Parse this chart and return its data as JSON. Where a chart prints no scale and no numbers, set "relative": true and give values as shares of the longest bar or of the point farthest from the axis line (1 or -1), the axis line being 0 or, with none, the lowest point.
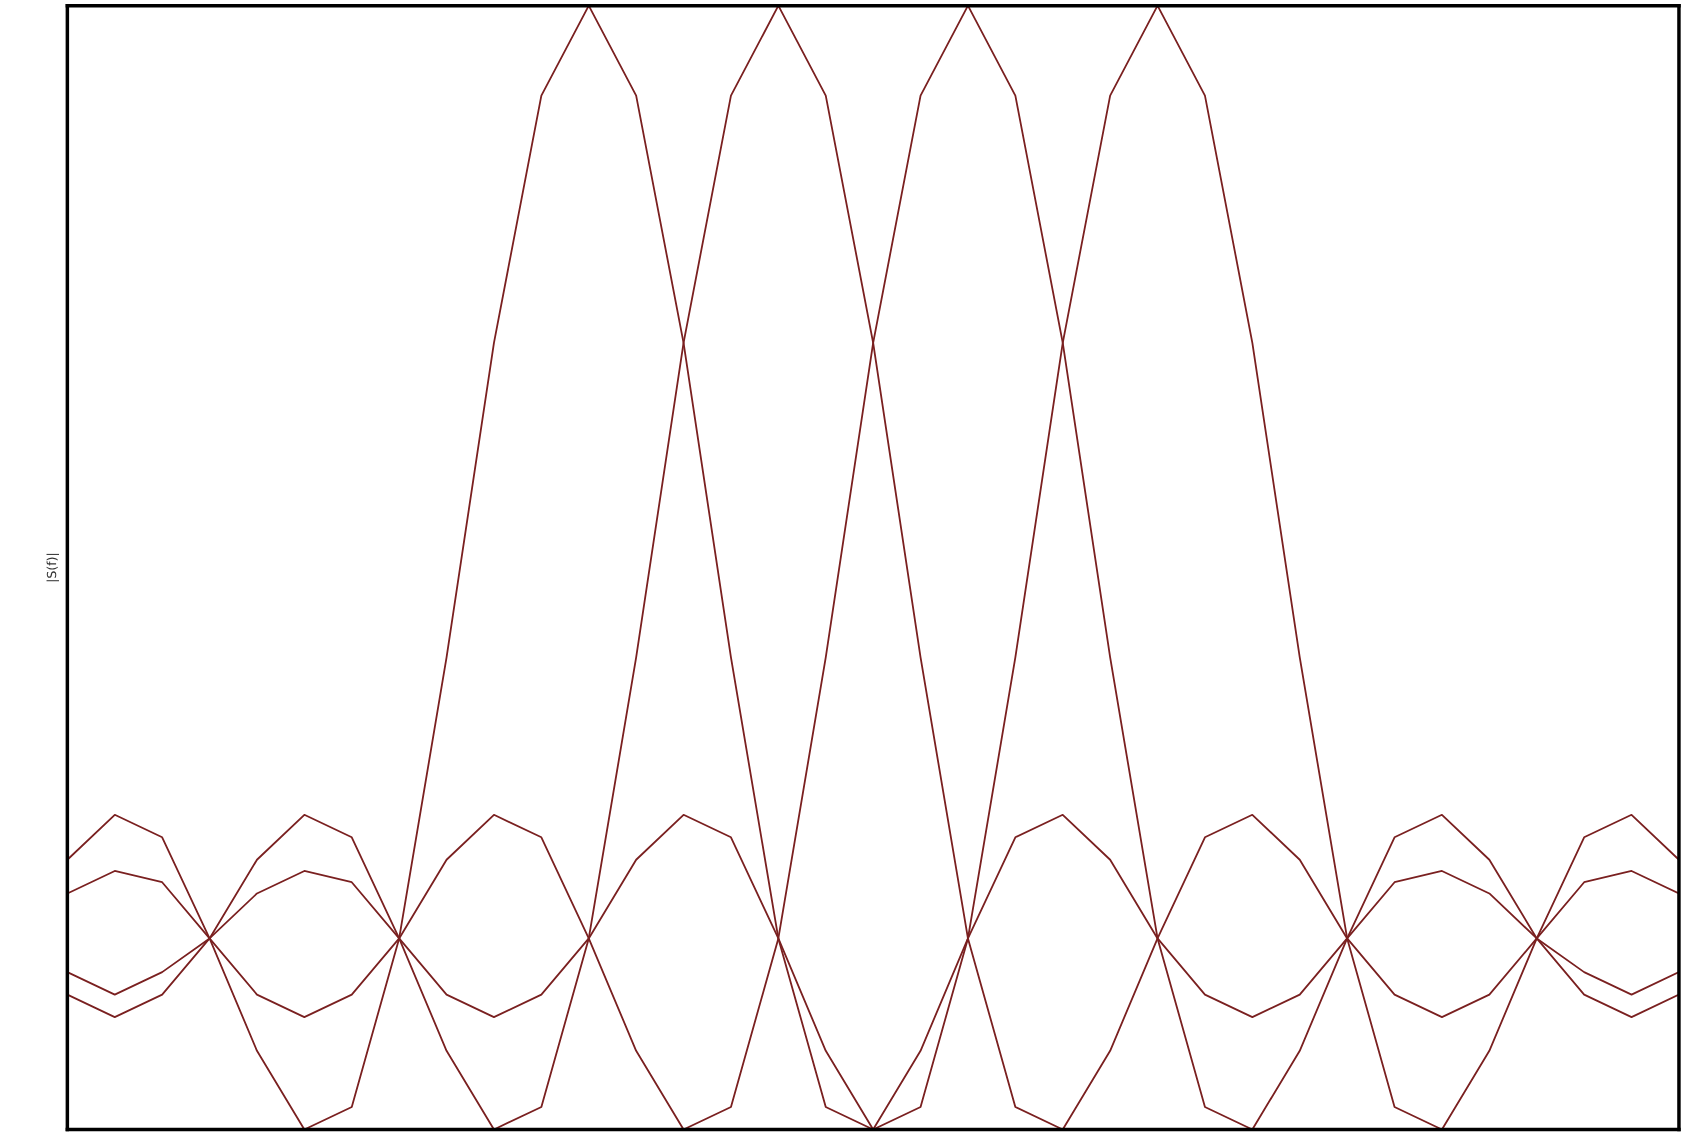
{
  "chart_data": {
    "type": "line",
    "ylabel": "|S(f)|",
    "relative": true,
    "tick_labels": false,
    "categories": [
      null,
      null,
      null,
      null,
      null,
      null,
      null,
      null,
      null,
      null,
      null,
      null,
      null,
      null,
      null,
      null,
      null,
      null,
      null,
      null,
      null,
      null,
      null,
      null,
      null,
      null,
      null,
      null,
      null,
      null,
      null,
      null,
      null,
      null,
      null
    ],
    "series": [
      {
        "color": "#7a2020",
        "values": [
          0.24,
          0.28,
          0.26,
          0.17,
          0.07,
          0.0,
          0.02,
          0.17,
          0.42,
          0.7,
          0.92,
          1.0,
          0.92,
          0.7,
          0.42,
          0.17,
          0.02,
          0.0,
          0.07,
          0.17,
          0.26,
          0.28,
          0.24,
          0.17,
          0.12,
          0.1,
          0.12,
          0.17,
          0.22,
          0.23,
          0.21,
          0.17,
          0.14,
          0.12,
          0.14
        ]
      },
      {
        "color": "#7a2020",
        "values": [
          0.12,
          0.1,
          0.12,
          0.17,
          0.24,
          0.28,
          0.26,
          0.17,
          0.07,
          0.0,
          0.02,
          0.17,
          0.42,
          0.7,
          0.92,
          1.0,
          0.92,
          0.7,
          0.42,
          0.17,
          0.02,
          0.0,
          0.07,
          0.17,
          0.26,
          0.28,
          0.24,
          0.17,
          0.12,
          0.1,
          0.12,
          0.17,
          0.22,
          0.23,
          0.21
        ]
      },
      {
        "color": "#7a2020",
        "values": [
          0.21,
          0.23,
          0.22,
          0.17,
          0.12,
          0.1,
          0.12,
          0.17,
          0.24,
          0.28,
          0.26,
          0.17,
          0.07,
          0.0,
          0.02,
          0.17,
          0.42,
          0.7,
          0.92,
          1.0,
          0.92,
          0.7,
          0.42,
          0.17,
          0.02,
          0.0,
          0.07,
          0.17,
          0.26,
          0.28,
          0.24,
          0.17,
          0.12,
          0.1,
          0.12
        ]
      },
      {
        "color": "#7a2020",
        "values": [
          0.14,
          0.12,
          0.14,
          0.17,
          0.21,
          0.23,
          0.22,
          0.17,
          0.12,
          0.1,
          0.12,
          0.17,
          0.24,
          0.28,
          0.26,
          0.17,
          0.07,
          0.0,
          0.02,
          0.17,
          0.42,
          0.7,
          0.92,
          1.0,
          0.92,
          0.7,
          0.42,
          0.17,
          0.02,
          0.0,
          0.07,
          0.17,
          0.26,
          0.28,
          0.24
        ]
      }
    ]
  }
}
